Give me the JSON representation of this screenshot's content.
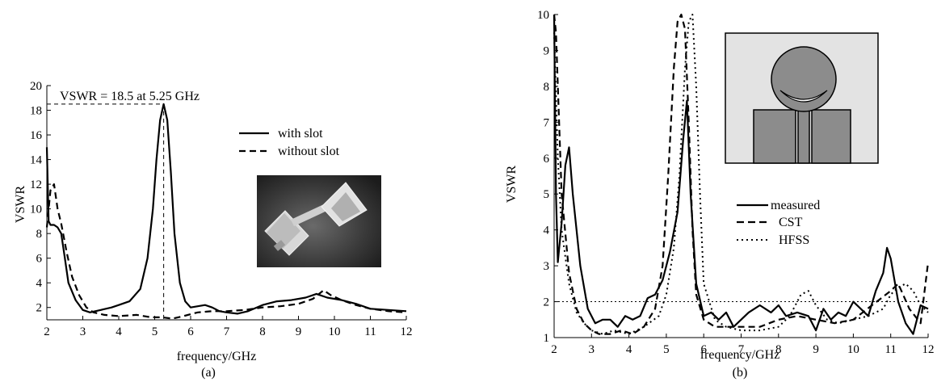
{
  "chart_data": [
    {
      "type": "line",
      "panel_label": "(a)",
      "xlabel": "frequency/GHz",
      "ylabel": "VSWR",
      "xlim": [
        2,
        12
      ],
      "ylim": [
        1,
        20
      ],
      "xticks": [
        2,
        3,
        4,
        5,
        6,
        7,
        8,
        9,
        10,
        11,
        12
      ],
      "yticks": [
        2,
        4,
        6,
        8,
        10,
        12,
        14,
        16,
        18,
        20
      ],
      "legend_position": "right",
      "annotation": {
        "text": "VSWR = 18.5 at 5.25 GHz",
        "x": 5.25,
        "y": 18.5
      },
      "series": [
        {
          "name": "with slot",
          "style": "solid",
          "x": [
            2.0,
            2.05,
            2.1,
            2.2,
            2.3,
            2.4,
            2.5,
            2.6,
            2.8,
            3.0,
            3.2,
            3.5,
            3.8,
            4.0,
            4.3,
            4.6,
            4.8,
            4.95,
            5.05,
            5.15,
            5.25,
            5.35,
            5.45,
            5.55,
            5.7,
            5.85,
            6.0,
            6.2,
            6.4,
            6.6,
            6.8,
            7.0,
            7.3,
            7.6,
            8.0,
            8.4,
            8.8,
            9.2,
            9.5,
            9.8,
            10.2,
            10.6,
            11.0,
            11.5,
            12.0
          ],
          "y": [
            15.0,
            9.0,
            8.7,
            8.7,
            8.5,
            8.0,
            6.0,
            4.0,
            2.6,
            1.8,
            1.6,
            1.8,
            2.0,
            2.2,
            2.5,
            3.5,
            6.0,
            10.0,
            14.0,
            17.2,
            18.5,
            17.2,
            13.0,
            8.0,
            4.0,
            2.5,
            2.0,
            2.1,
            2.2,
            2.0,
            1.7,
            1.6,
            1.5,
            1.7,
            2.2,
            2.5,
            2.6,
            2.8,
            3.1,
            2.8,
            2.6,
            2.3,
            1.9,
            1.8,
            1.7
          ]
        },
        {
          "name": "without slot",
          "style": "dashed",
          "x": [
            2.0,
            2.1,
            2.2,
            2.3,
            2.4,
            2.55,
            2.7,
            2.9,
            3.1,
            3.3,
            3.6,
            4.0,
            4.5,
            4.9,
            5.2,
            5.5,
            5.8,
            6.2,
            6.6,
            7.0,
            7.5,
            8.0,
            8.5,
            9.0,
            9.4,
            9.7,
            9.9,
            10.2,
            10.6,
            11.0,
            11.5,
            12.0
          ],
          "y": [
            8.5,
            11.5,
            12.0,
            10.0,
            8.8,
            6.5,
            4.5,
            3.0,
            2.0,
            1.6,
            1.4,
            1.3,
            1.4,
            1.2,
            1.2,
            1.1,
            1.3,
            1.6,
            1.7,
            1.7,
            1.8,
            2.0,
            2.1,
            2.3,
            2.7,
            3.4,
            3.0,
            2.6,
            2.2,
            1.9,
            1.7,
            1.6
          ]
        }
      ]
    },
    {
      "type": "line",
      "panel_label": "(b)",
      "xlabel": "frequency/GHz",
      "ylabel": "VSWR",
      "xlim": [
        2,
        12
      ],
      "ylim": [
        1,
        10
      ],
      "xticks": [
        2,
        3,
        4,
        5,
        6,
        7,
        8,
        9,
        10,
        11,
        12
      ],
      "yticks": [
        1,
        2,
        3,
        4,
        5,
        6,
        7,
        8,
        9,
        10
      ],
      "legend_position": "center-right",
      "reference_line": {
        "y": 2.0,
        "style": "dotted"
      },
      "series": [
        {
          "name": "measured",
          "style": "solid",
          "x": [
            2.0,
            2.05,
            2.1,
            2.2,
            2.3,
            2.4,
            2.5,
            2.7,
            2.9,
            3.1,
            3.3,
            3.5,
            3.7,
            3.9,
            4.1,
            4.3,
            4.5,
            4.7,
            4.9,
            5.1,
            5.3,
            5.45,
            5.55,
            5.65,
            5.8,
            6.0,
            6.2,
            6.4,
            6.6,
            6.8,
            7.0,
            7.2,
            7.5,
            7.8,
            8.0,
            8.2,
            8.5,
            8.8,
            9.0,
            9.2,
            9.4,
            9.6,
            9.8,
            10.0,
            10.2,
            10.4,
            10.6,
            10.8,
            10.9,
            11.0,
            11.2,
            11.4,
            11.6,
            11.8,
            12.0
          ],
          "y": [
            10.0,
            5.0,
            3.1,
            4.2,
            5.8,
            6.3,
            5.0,
            3.0,
            1.8,
            1.4,
            1.5,
            1.5,
            1.3,
            1.6,
            1.5,
            1.6,
            2.1,
            2.2,
            2.6,
            3.4,
            4.5,
            6.5,
            7.6,
            5.0,
            2.5,
            1.6,
            1.7,
            1.5,
            1.7,
            1.3,
            1.5,
            1.7,
            1.9,
            1.7,
            1.9,
            1.6,
            1.7,
            1.6,
            1.2,
            1.8,
            1.5,
            1.7,
            1.6,
            2.0,
            1.8,
            1.6,
            2.3,
            2.8,
            3.5,
            3.2,
            2.0,
            1.4,
            1.1,
            1.9,
            1.8
          ]
        },
        {
          "name": "CST",
          "style": "dashed",
          "x": [
            2.0,
            2.05,
            2.1,
            2.2,
            2.4,
            2.6,
            2.8,
            3.0,
            3.2,
            3.5,
            3.8,
            4.1,
            4.4,
            4.7,
            4.9,
            5.05,
            5.2,
            5.3,
            5.4,
            5.5,
            5.6,
            5.7,
            5.8,
            6.0,
            6.3,
            6.6,
            7.0,
            7.5,
            8.0,
            8.5,
            9.0,
            9.5,
            10.0,
            10.5,
            11.0,
            11.2,
            11.5,
            11.8,
            12.0
          ],
          "y": [
            10.0,
            9.5,
            8.0,
            5.0,
            2.8,
            1.8,
            1.4,
            1.2,
            1.1,
            1.1,
            1.2,
            1.1,
            1.3,
            1.8,
            3.0,
            5.5,
            8.5,
            9.8,
            10.0,
            9.6,
            7.0,
            4.0,
            2.2,
            1.5,
            1.3,
            1.3,
            1.3,
            1.3,
            1.5,
            1.6,
            1.5,
            1.4,
            1.5,
            1.9,
            2.3,
            2.5,
            1.8,
            1.4,
            3.1
          ]
        },
        {
          "name": "HFSS",
          "style": "dotted",
          "x": [
            2.0,
            2.1,
            2.2,
            2.4,
            2.6,
            2.8,
            3.0,
            3.3,
            3.6,
            4.0,
            4.4,
            4.8,
            5.0,
            5.2,
            5.35,
            5.5,
            5.6,
            5.7,
            5.8,
            5.9,
            6.0,
            6.3,
            6.6,
            7.0,
            7.5,
            8.0,
            8.3,
            8.6,
            8.8,
            9.0,
            9.3,
            9.6,
            10.0,
            10.4,
            10.8,
            11.0,
            11.2,
            11.4,
            11.6,
            11.8,
            12.0
          ],
          "y": [
            9.5,
            6.0,
            4.0,
            2.5,
            1.7,
            1.4,
            1.2,
            1.1,
            1.2,
            1.1,
            1.3,
            1.6,
            2.2,
            3.5,
            5.5,
            8.5,
            9.8,
            10.0,
            8.0,
            5.0,
            2.5,
            1.5,
            1.3,
            1.2,
            1.2,
            1.3,
            1.6,
            2.2,
            2.3,
            1.9,
            1.5,
            1.4,
            1.5,
            1.6,
            1.8,
            2.2,
            2.4,
            2.5,
            2.3,
            1.9,
            1.7
          ]
        }
      ]
    }
  ]
}
